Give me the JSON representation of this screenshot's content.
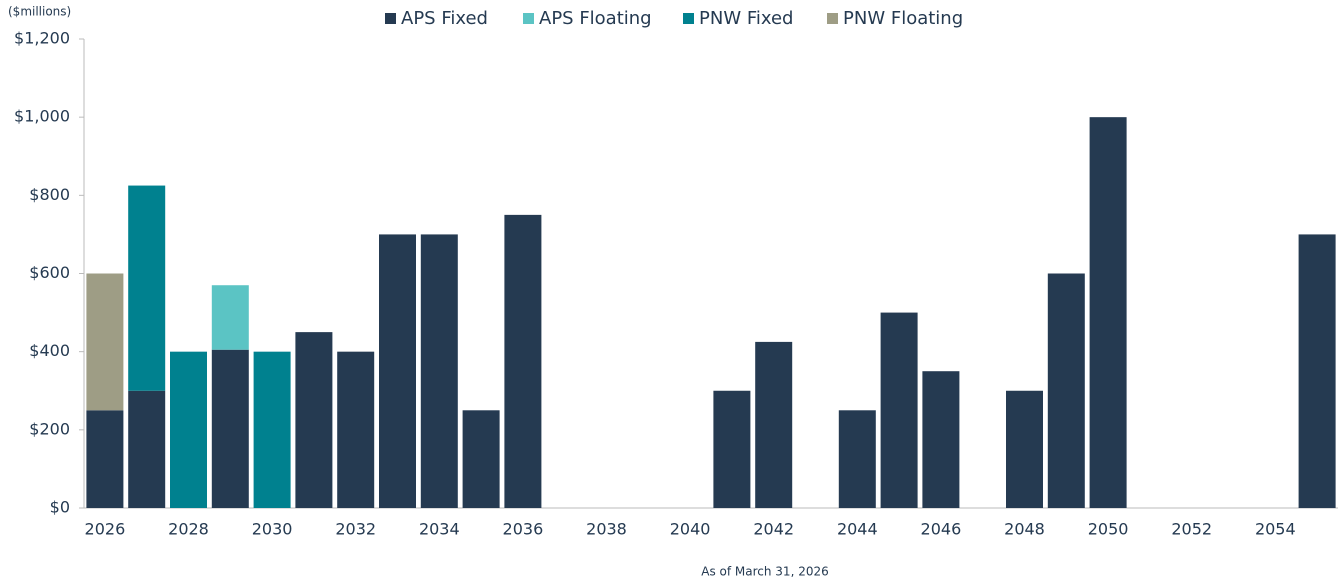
{
  "chart_data": {
    "type": "stacked_bar",
    "unit_note": "($millions)",
    "footnote": "As of March 31, 2026",
    "categories": [
      "2026",
      null,
      "2028",
      null,
      "2030",
      null,
      "2032",
      null,
      "2034",
      null,
      "2036",
      null,
      "2038",
      null,
      "2040",
      null,
      "2042",
      null,
      "2044",
      null,
      "2046",
      null,
      "2048",
      null,
      "2050",
      null,
      "2052",
      null,
      "2054",
      null
    ],
    "series": [
      {
        "name": "APS Fixed",
        "color": "#253a51",
        "values": [
          250,
          300,
          0,
          405,
          0,
          450,
          400,
          700,
          700,
          250,
          750,
          0,
          0,
          0,
          0,
          300,
          425,
          0,
          250,
          500,
          350,
          0,
          300,
          600,
          1000,
          0,
          0,
          0,
          0,
          700
        ]
      },
      {
        "name": "APS Floating",
        "color": "#5bc4c4",
        "values": [
          0,
          0,
          0,
          165,
          0,
          0,
          0,
          0,
          0,
          0,
          0,
          0,
          0,
          0,
          0,
          0,
          0,
          0,
          0,
          0,
          0,
          0,
          0,
          0,
          0,
          0,
          0,
          0,
          0,
          0
        ]
      },
      {
        "name": "PNW Fixed",
        "color": "#00818f",
        "values": [
          0,
          525,
          400,
          0,
          400,
          0,
          0,
          0,
          0,
          0,
          0,
          0,
          0,
          0,
          0,
          0,
          0,
          0,
          0,
          0,
          0,
          0,
          0,
          0,
          0,
          0,
          0,
          0,
          0,
          0
        ]
      },
      {
        "name": "PNW Floating",
        "color": "#9e9d85",
        "values": [
          350,
          0,
          0,
          0,
          0,
          0,
          0,
          0,
          0,
          0,
          0,
          0,
          0,
          0,
          0,
          0,
          0,
          0,
          0,
          0,
          0,
          0,
          0,
          0,
          0,
          0,
          0,
          0,
          0,
          0
        ]
      }
    ],
    "ylim": [
      0,
      1200
    ],
    "yticks": [
      {
        "value": 0,
        "label": "$0"
      },
      {
        "value": 200,
        "label": "$200"
      },
      {
        "value": 400,
        "label": "$400"
      },
      {
        "value": 600,
        "label": "$600"
      },
      {
        "value": 800,
        "label": "$800"
      },
      {
        "value": 1000,
        "label": "$1,000"
      },
      {
        "value": 1200,
        "label": "$1,200"
      }
    ],
    "legend": "top"
  }
}
